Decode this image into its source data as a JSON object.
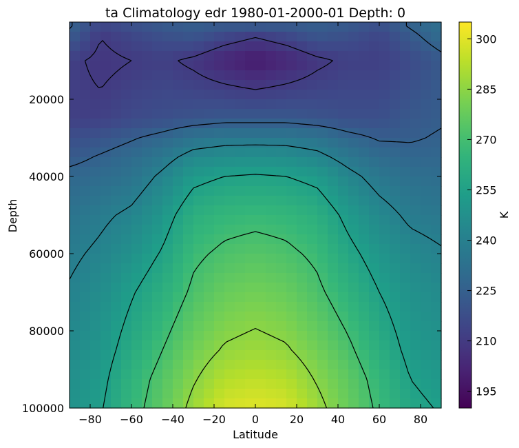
{
  "chart_data": {
    "type": "heatmap",
    "title": "ta Climatology edr 1980-01-2000-01 Depth: 0",
    "xlabel": "Latitude",
    "ylabel": "Depth",
    "xlim": [
      -90,
      90
    ],
    "ylim": [
      100000,
      0
    ],
    "x_ticks": [
      -80,
      -60,
      -40,
      -20,
      0,
      20,
      40,
      60,
      80
    ],
    "y_ticks": [
      20000,
      40000,
      60000,
      80000,
      100000
    ],
    "colorbar": {
      "label": "K",
      "range": [
        190,
        305
      ],
      "ticks": [
        195,
        210,
        225,
        240,
        255,
        270,
        285,
        300
      ],
      "colormap": "viridis"
    },
    "levels_hpa": [
      1000,
      4000,
      10000,
      25000,
      30000,
      35000,
      40000,
      50000,
      60000,
      70000,
      85000,
      92500,
      100000
    ],
    "latitudes": [
      -90,
      -75,
      -60,
      -45,
      -30,
      -15,
      0,
      15,
      30,
      45,
      60,
      75,
      90
    ],
    "values": [
      [
        226,
        214,
        218,
        222,
        224,
        222,
        222,
        222,
        224,
        222,
        218,
        226,
        232
      ],
      [
        222,
        210,
        214,
        218,
        220,
        214,
        210,
        214,
        220,
        218,
        214,
        222,
        230
      ],
      [
        212,
        208,
        210,
        212,
        208,
        202,
        198,
        202,
        208,
        212,
        212,
        216,
        222
      ],
      [
        212,
        212,
        216,
        218,
        220,
        222,
        222,
        222,
        220,
        218,
        218,
        222,
        224
      ],
      [
        218,
        220,
        224,
        228,
        234,
        236,
        236,
        236,
        234,
        228,
        224,
        224,
        226
      ],
      [
        222,
        226,
        230,
        236,
        244,
        246,
        247,
        246,
        243,
        236,
        230,
        228,
        228
      ],
      [
        228,
        230,
        234,
        242,
        252,
        255,
        256,
        255,
        252,
        243,
        236,
        232,
        231
      ],
      [
        234,
        238,
        242,
        250,
        262,
        266,
        267,
        266,
        262,
        252,
        244,
        238,
        236
      ],
      [
        238,
        242,
        248,
        256,
        268,
        272,
        274,
        272,
        268,
        258,
        250,
        244,
        241
      ],
      [
        241,
        246,
        254,
        262,
        272,
        278,
        280,
        278,
        272,
        264,
        255,
        248,
        245
      ],
      [
        245,
        250,
        260,
        270,
        280,
        286,
        288,
        286,
        280,
        272,
        262,
        252,
        249
      ],
      [
        247,
        252,
        264,
        274,
        284,
        292,
        294,
        292,
        284,
        276,
        266,
        255,
        251
      ],
      [
        248,
        254,
        266,
        276,
        288,
        298,
        300,
        298,
        288,
        278,
        268,
        258,
        254
      ]
    ],
    "contour_levels": [
      210,
      225,
      240,
      255,
      270,
      285
    ]
  }
}
